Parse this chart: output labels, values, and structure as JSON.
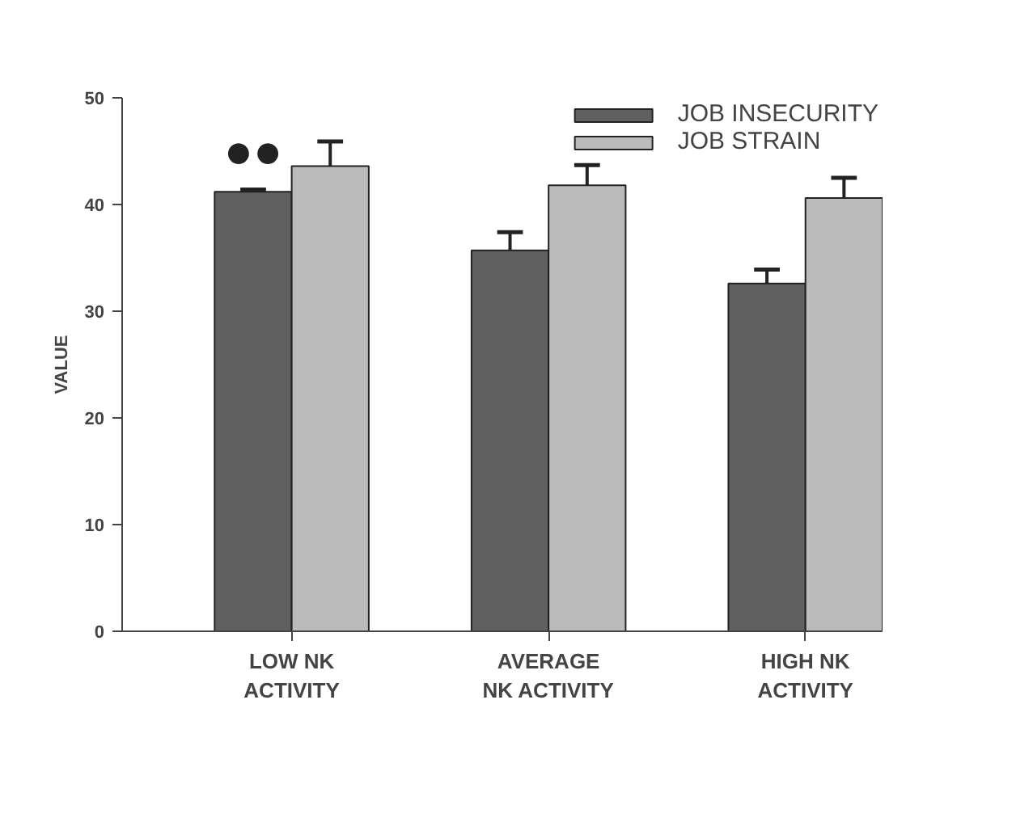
{
  "chart_data": {
    "type": "bar",
    "ylabel": "VALUE",
    "categories": [
      "LOW NK\nACTIVITY",
      "AVERAGE\nNK ACTIVITY",
      "HIGH NK\nACTIVITY"
    ],
    "series": [
      {
        "name": "JOB INSECURITY",
        "color": "#606060",
        "values": [
          41.2,
          35.7,
          32.6
        ],
        "errors": [
          [
            41.2,
            41.4
          ],
          [
            35.7,
            37.4
          ],
          [
            32.6,
            33.9
          ]
        ]
      },
      {
        "name": "JOB STRAIN",
        "color": "#bbbbbb",
        "values": [
          43.6,
          41.8,
          40.6
        ],
        "errors": [
          [
            43.6,
            45.9
          ],
          [
            41.8,
            43.7
          ],
          [
            40.6,
            42.5
          ]
        ]
      }
    ],
    "ylim": [
      0,
      50
    ],
    "yticks": [
      0,
      10,
      20,
      30,
      40,
      50
    ],
    "grid": false,
    "legend": "top right",
    "annotations": [
      "●●"
    ]
  }
}
